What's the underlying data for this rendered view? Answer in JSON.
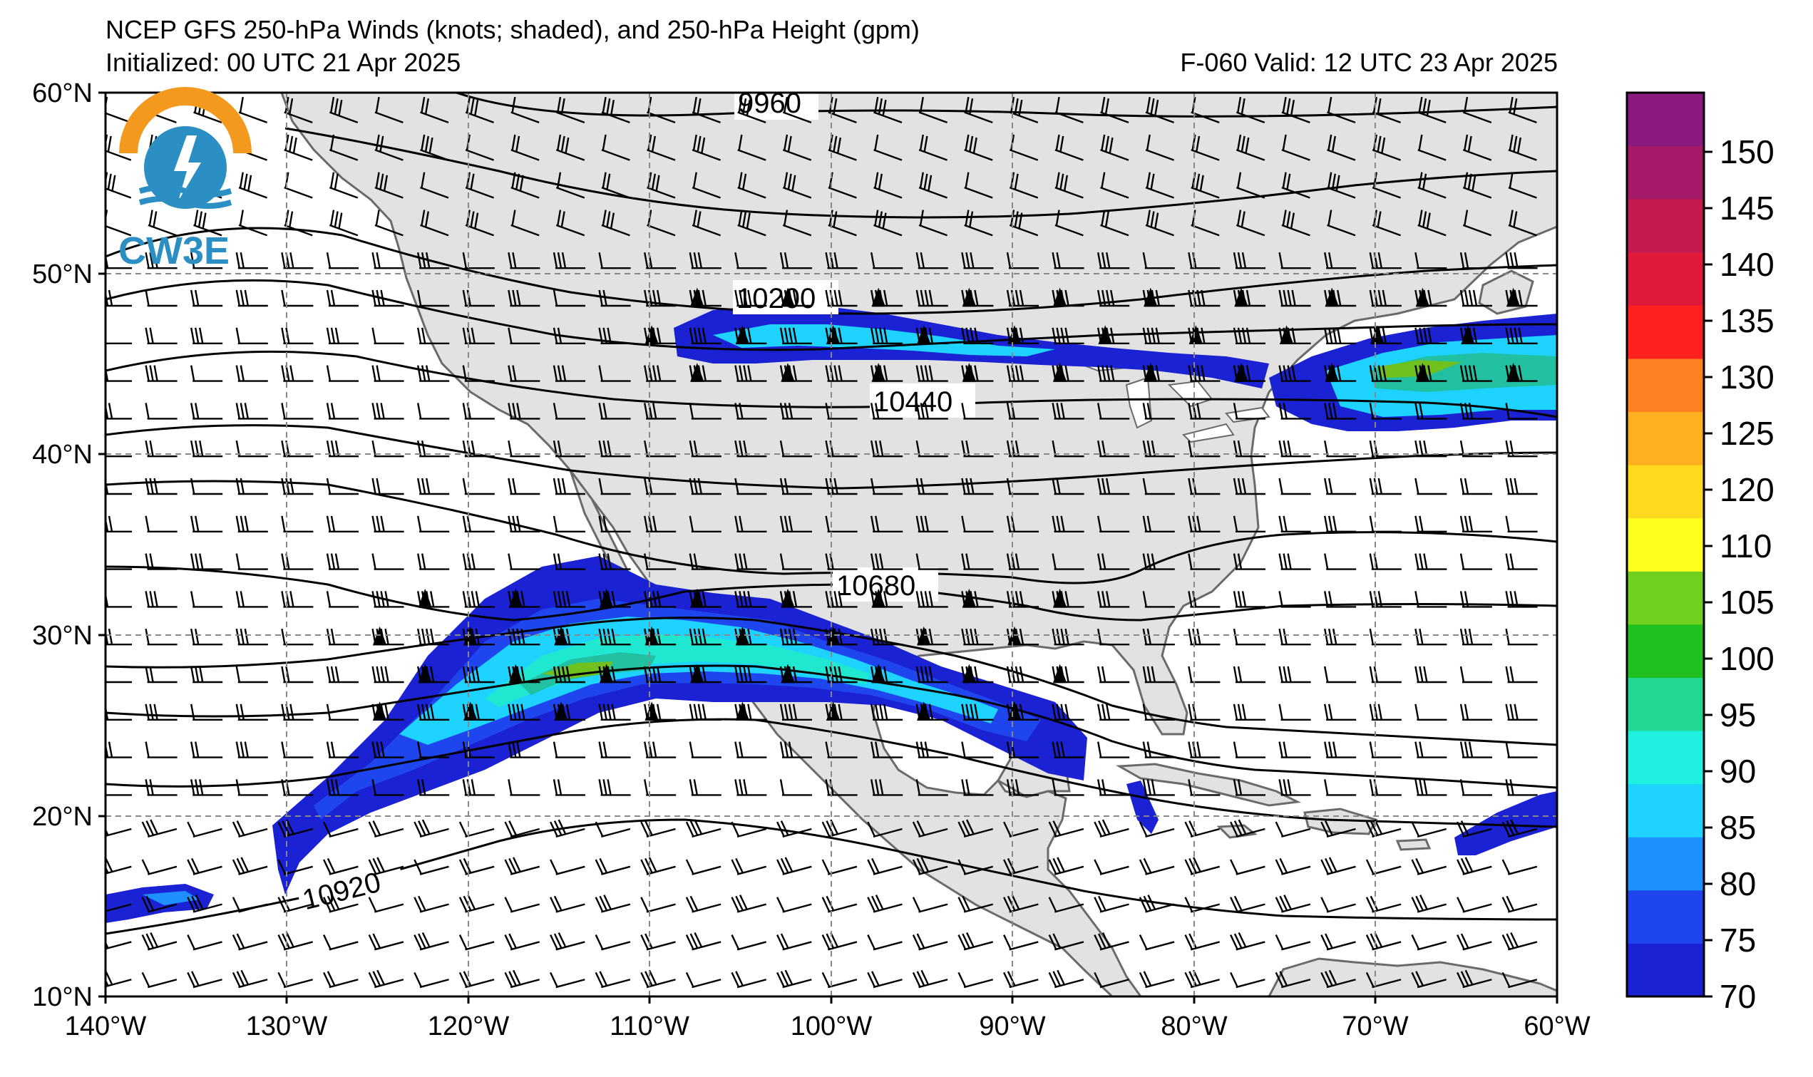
{
  "title": {
    "line1": "NCEP GFS 250-hPa Winds (knots; shaded), and 250-hPa Height (gpm)",
    "initialized": "Initialized: 00 UTC 21 Apr 2025",
    "valid": "F-060  Valid: 12 UTC 23 Apr 2025"
  },
  "logo": {
    "text": "CW3E"
  },
  "axes": {
    "lat_labels": [
      "60°N",
      "50°N",
      "40°N",
      "30°N",
      "20°N",
      "10°N"
    ],
    "lon_labels": [
      "140°W",
      "130°W",
      "120°W",
      "110°W",
      "100°W",
      "90°W",
      "80°W",
      "70°W",
      "60°W"
    ],
    "lat_range": [
      10,
      60
    ],
    "lon_range": [
      -140,
      -60
    ]
  },
  "colorbar": {
    "ticks": [
      "70",
      "75",
      "80",
      "85",
      "90",
      "95",
      "100",
      "105",
      "110",
      "120",
      "125",
      "130",
      "135",
      "140",
      "145",
      "150"
    ],
    "levels": [
      70,
      75,
      80,
      85,
      90,
      95,
      100,
      105,
      110,
      115,
      120,
      125,
      130,
      135,
      140,
      145,
      150,
      155
    ],
    "colors": [
      "#1a22d4",
      "#1f45ee",
      "#1e90ff",
      "#1ed3ff",
      "#20f0e0",
      "#20d890",
      "#20c020",
      "#70d020",
      "#ffff20",
      "#ffd820",
      "#ffb020",
      "#ff8020",
      "#ff2020",
      "#e01a3a",
      "#c41a50",
      "#a41a68",
      "#8a1a80",
      "#7a1a90"
    ]
  },
  "contours": {
    "labels": [
      "9960",
      "10200",
      "10440",
      "10680",
      "10920"
    ]
  },
  "colors": {
    "land": "#e2e2e2",
    "coast": "#6a6a6a",
    "grid": "#888888",
    "contour": "#000000",
    "logo_orange": "#f39a1e",
    "logo_blue": "#2b8fc4"
  }
}
